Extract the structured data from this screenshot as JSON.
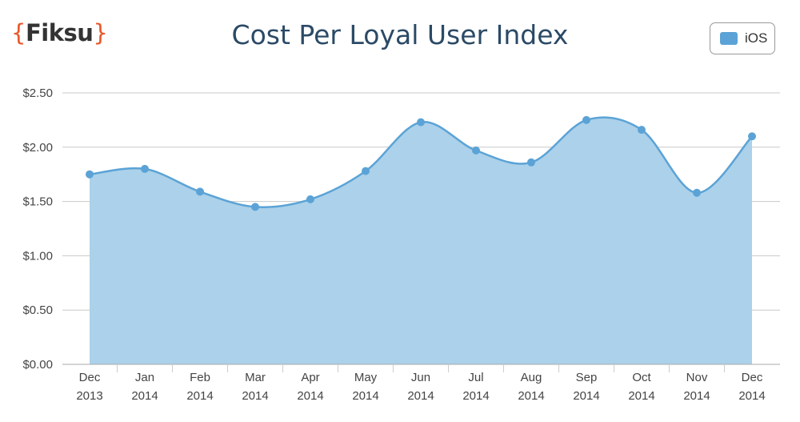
{
  "logo": {
    "open": "{",
    "text": "Fiksu",
    "close": "}"
  },
  "title": "Cost Per Loyal User Index",
  "legend": {
    "label": "iOS"
  },
  "chart_data": {
    "type": "area",
    "title": "Cost Per Loyal User Index",
    "categories": [
      [
        "Dec",
        "2013"
      ],
      [
        "Jan",
        "2014"
      ],
      [
        "Feb",
        "2014"
      ],
      [
        "Mar",
        "2014"
      ],
      [
        "Apr",
        "2014"
      ],
      [
        "May",
        "2014"
      ],
      [
        "Jun",
        "2014"
      ],
      [
        "Jul",
        "2014"
      ],
      [
        "Aug",
        "2014"
      ],
      [
        "Sep",
        "2014"
      ],
      [
        "Oct",
        "2014"
      ],
      [
        "Nov",
        "2014"
      ],
      [
        "Dec",
        "2014"
      ]
    ],
    "series": [
      {
        "name": "iOS",
        "color": "#5ba3d6",
        "fill": "#acd1ea",
        "values": [
          1.75,
          1.8,
          1.59,
          1.45,
          1.52,
          1.78,
          2.23,
          1.97,
          1.86,
          2.25,
          2.16,
          1.58,
          2.1
        ]
      }
    ],
    "yticks": [
      0,
      0.5,
      1.0,
      1.5,
      2.0,
      2.5
    ],
    "ytick_labels": [
      "$0.00",
      "$0.50",
      "$1.00",
      "$1.50",
      "$2.00",
      "$2.50"
    ],
    "ylim": [
      0,
      2.5
    ],
    "grid": true,
    "legend_position": "top-right"
  }
}
